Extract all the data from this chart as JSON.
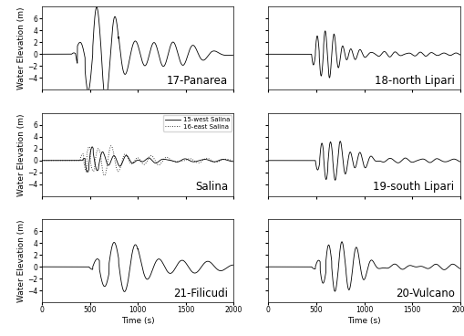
{
  "subplots": [
    {
      "label": "17-Panarea",
      "row": 0,
      "col": 0,
      "ylim": [
        -6,
        8
      ],
      "yticks": [
        -4,
        -2,
        0,
        2,
        4,
        6
      ],
      "has_ylabel": true
    },
    {
      "label": "18-north Lipari",
      "row": 0,
      "col": 1,
      "ylim": [
        -6,
        8
      ],
      "yticks": [
        -4,
        -2,
        0,
        2,
        4,
        6
      ],
      "has_ylabel": false
    },
    {
      "label": "Salina",
      "row": 1,
      "col": 0,
      "ylim": [
        -6,
        8
      ],
      "yticks": [
        -4,
        -2,
        0,
        2,
        4,
        6
      ],
      "has_ylabel": true,
      "has_legend": true
    },
    {
      "label": "19-south Lipari",
      "row": 1,
      "col": 1,
      "ylim": [
        -6,
        8
      ],
      "yticks": [
        -4,
        -2,
        0,
        2,
        4,
        6
      ],
      "has_ylabel": false
    },
    {
      "label": "21-Filicudi",
      "row": 2,
      "col": 0,
      "ylim": [
        -6,
        8
      ],
      "yticks": [
        -4,
        -2,
        0,
        2,
        4,
        6
      ],
      "has_ylabel": true,
      "has_xlabel": true
    },
    {
      "label": "20-Vulcano",
      "row": 2,
      "col": 1,
      "ylim": [
        -6,
        8
      ],
      "yticks": [
        -4,
        -2,
        0,
        2,
        4,
        6
      ],
      "has_ylabel": false,
      "has_xlabel": true
    }
  ],
  "xlim": [
    0,
    2000
  ],
  "xticks": [
    0,
    500,
    1000,
    1500,
    2000
  ],
  "xlabel": "Time (s)",
  "ylabel": "Water Elevation (m)",
  "background_color": "#ffffff",
  "fontsize_label": 6.5,
  "fontsize_tick": 5.5,
  "fontsize_station": 8.5,
  "fontsize_legend": 5
}
